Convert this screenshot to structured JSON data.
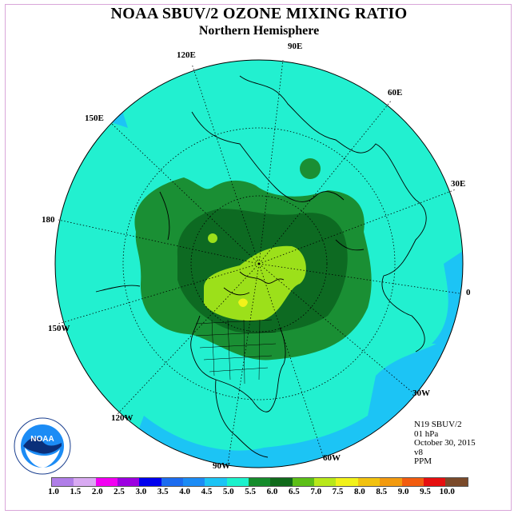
{
  "title": "NOAA SBUV/2 OZONE MIXING RATIO",
  "subtitle": "Northern Hemisphere",
  "longitude_labels": [
    "90E",
    "60E",
    "30E",
    "0",
    "30W",
    "60W",
    "90W",
    "120W",
    "150W",
    "180",
    "150E",
    "120E"
  ],
  "info": {
    "satellite": "N19 SBUV/2",
    "level": "01 hPa",
    "date": "October 30, 2015",
    "version": "v8",
    "units": "PPM"
  },
  "legend": {
    "ticks": [
      "1.0",
      "1.5",
      "2.0",
      "2.5",
      "3.0",
      "3.5",
      "4.0",
      "4.5",
      "5.0",
      "5.5",
      "6.0",
      "6.5",
      "7.0",
      "7.5",
      "8.0",
      "8.5",
      "9.0",
      "9.5",
      "10.0"
    ],
    "colors": [
      "#b07ee8",
      "#d9aaf2",
      "#f200f2",
      "#9c00e0",
      "#0000ee",
      "#1c6cf0",
      "#1c8cf5",
      "#1cc4f5",
      "#1cf2cc",
      "#158c2c",
      "#0f6a1a",
      "#5cbf17",
      "#b8e81a",
      "#f2f21a",
      "#f2c20f",
      "#f29a0f",
      "#f25c0f",
      "#e60f0f",
      "#7a4a2a"
    ]
  },
  "logo_text": "NOAA",
  "colors": {
    "ocean_fill": "#22f0d0",
    "band_blue": "#1cc4f5",
    "band_green": "#1a8f34",
    "band_dark_green": "#0d6a22",
    "band_yellow_green": "#9ce01a",
    "band_yellow": "#f2f21a"
  }
}
